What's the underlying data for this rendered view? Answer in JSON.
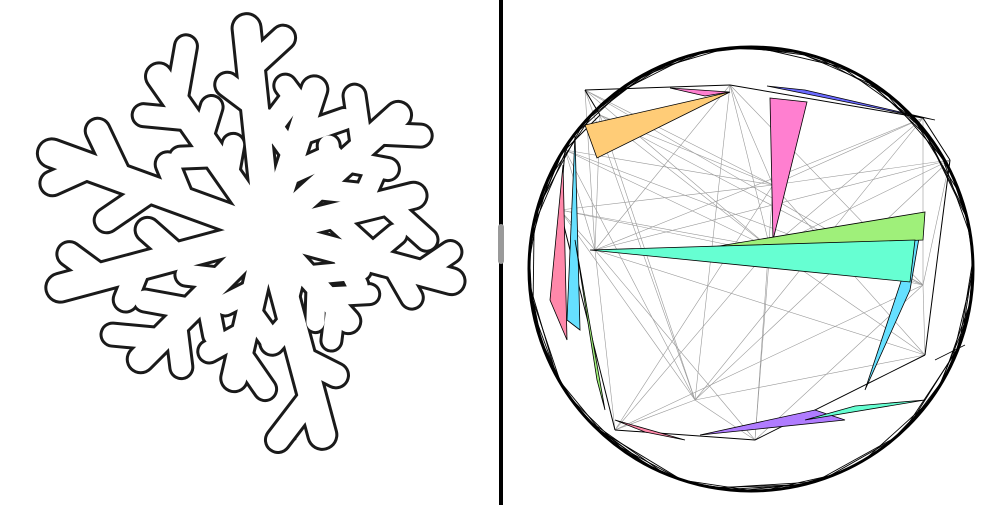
{
  "left_view": {
    "view_name": "mesh-domain-view",
    "outline_color": "#1a1a1a",
    "fill_palette": [
      "#ff8fd8",
      "#8cf07a",
      "#6ee6ff",
      "#ffd27a",
      "#9a86ff",
      "#ff8fa0",
      "#7affd0",
      "#b8ff7a",
      "#ffb0e8",
      "#a0b8ff"
    ]
  },
  "right_view": {
    "view_name": "disk-map-view",
    "boundary_color": "#000000",
    "highlight_colors": {
      "pink": "#ff7fd0",
      "blue": "#6a6aff",
      "orange": "#ffcc77",
      "cyan": "#66e0ff",
      "green": "#9ff07a",
      "teal": "#66ffd2",
      "rose": "#ff88aa",
      "violet": "#b07cff"
    }
  },
  "splitter": {
    "orientation": "vertical"
  }
}
